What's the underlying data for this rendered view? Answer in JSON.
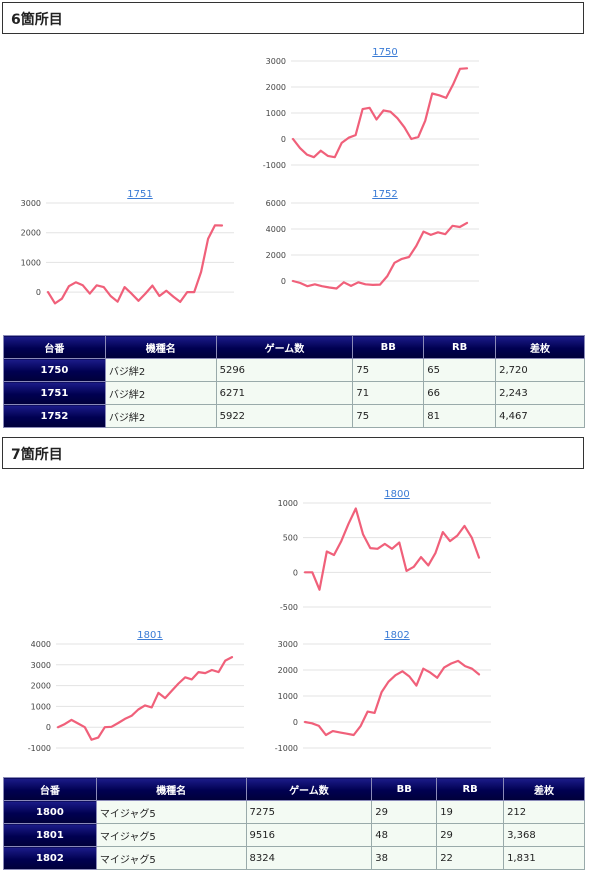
{
  "sections": [
    {
      "title": "6箇所目",
      "charts": [
        {
          "title": "1750",
          "yticks": [
            3000,
            2000,
            1000,
            0,
            -1000
          ],
          "ylim": [
            -1000,
            3000
          ],
          "values": [
            0,
            -350,
            -600,
            -700,
            -450,
            -650,
            -700,
            -150,
            50,
            150,
            1150,
            1200,
            750,
            1100,
            1050,
            800,
            450,
            0,
            80,
            700,
            1750,
            1680,
            1580,
            2100,
            2700,
            2720
          ]
        },
        {
          "title": "1751",
          "yticks": [
            3000,
            2000,
            1000,
            0
          ],
          "ylim": [
            -500,
            3000
          ],
          "values": [
            0,
            -380,
            -220,
            200,
            330,
            230,
            -50,
            230,
            170,
            -130,
            -320,
            170,
            -50,
            -290,
            -50,
            220,
            -130,
            50,
            -150,
            -330,
            0,
            0,
            680,
            1800,
            2250,
            2243
          ]
        },
        {
          "title": "1752",
          "yticks": [
            6000,
            4000,
            2000,
            0
          ],
          "ylim": [
            -2000,
            6000
          ],
          "values": [
            0,
            -150,
            -400,
            -250,
            -400,
            -500,
            -580,
            -100,
            -380,
            -100,
            -250,
            -300,
            -280,
            380,
            1400,
            1700,
            1850,
            2700,
            3800,
            3550,
            3750,
            3600,
            4250,
            4150,
            4467
          ]
        }
      ],
      "table": {
        "headers": [
          "台番",
          "機種名",
          "ゲーム数",
          "BB",
          "RB",
          "差枚"
        ],
        "rows": [
          [
            "1750",
            "バジ絆2",
            "5296",
            "75",
            "65",
            "2,720"
          ],
          [
            "1751",
            "バジ絆2",
            "6271",
            "71",
            "66",
            "2,243"
          ],
          [
            "1752",
            "バジ絆2",
            "5922",
            "75",
            "81",
            "4,467"
          ]
        ]
      }
    },
    {
      "title": "7箇所目",
      "charts": [
        {
          "title": "1800",
          "yticks": [
            1000,
            500,
            0,
            -500
          ],
          "ylim": [
            -500,
            1000
          ],
          "values": [
            0,
            0,
            -250,
            300,
            250,
            450,
            700,
            920,
            550,
            350,
            340,
            410,
            340,
            430,
            20,
            80,
            220,
            100,
            280,
            580,
            450,
            530,
            670,
            500,
            212
          ]
        },
        {
          "title": "1801",
          "yticks": [
            4000,
            3000,
            2000,
            1000,
            0,
            -1000
          ],
          "ylim": [
            -1000,
            4000
          ],
          "values": [
            0,
            150,
            350,
            180,
            0,
            -600,
            -500,
            0,
            20,
            200,
            400,
            550,
            850,
            1050,
            950,
            1650,
            1400,
            1750,
            2100,
            2400,
            2300,
            2650,
            2600,
            2750,
            2650,
            3200,
            3368
          ]
        },
        {
          "title": "1802",
          "yticks": [
            3000,
            2000,
            1000,
            0,
            -1000
          ],
          "ylim": [
            -1000,
            3000
          ],
          "values": [
            0,
            -50,
            -150,
            -500,
            -350,
            -400,
            -450,
            -500,
            -150,
            400,
            350,
            1150,
            1550,
            1800,
            1950,
            1750,
            1400,
            2050,
            1900,
            1700,
            2100,
            2250,
            2350,
            2150,
            2050,
            1831
          ]
        }
      ],
      "table": {
        "headers": [
          "台番",
          "機種名",
          "ゲーム数",
          "BB",
          "RB",
          "差枚"
        ],
        "rows": [
          [
            "1800",
            "マイジャグ5",
            "7275",
            "29",
            "19",
            "212"
          ],
          [
            "1801",
            "マイジャグ5",
            "9516",
            "48",
            "29",
            "3,368"
          ],
          [
            "1802",
            "マイジャグ5",
            "8324",
            "38",
            "22",
            "1,831"
          ]
        ]
      }
    }
  ]
}
